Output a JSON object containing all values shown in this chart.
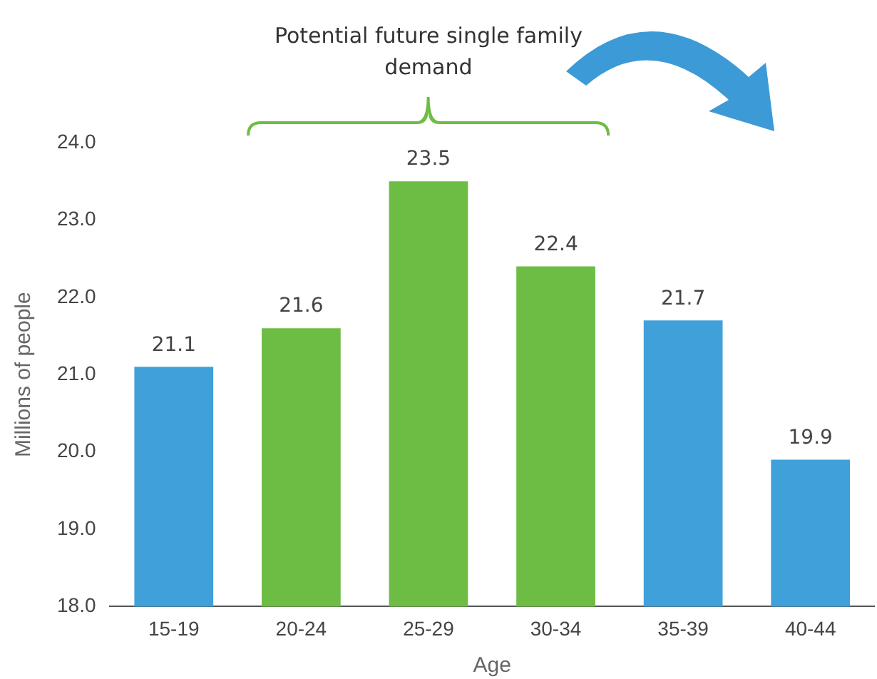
{
  "chart_data": {
    "type": "bar",
    "annotations": [
      "Potential future single family demand"
    ],
    "categories": [
      "15-19",
      "20-24",
      "25-29",
      "30-34",
      "35-39",
      "40-44"
    ],
    "values": [
      21.1,
      21.6,
      23.5,
      22.4,
      21.7,
      19.9
    ],
    "colors": [
      "#40a0da",
      "#6dbd45",
      "#6dbd45",
      "#6dbd45",
      "#40a0da",
      "#40a0da"
    ],
    "xlabel": "Age",
    "ylabel": "Millions of people",
    "ylim": [
      18,
      24
    ],
    "yticks": [
      {
        "value": 18,
        "label": "18.0"
      },
      {
        "value": 19,
        "label": "19.0"
      },
      {
        "value": 20,
        "label": "20.0"
      },
      {
        "value": 21,
        "label": "21.0"
      },
      {
        "value": 22,
        "label": "22.0"
      },
      {
        "value": 23,
        "label": "23.0"
      },
      {
        "value": 24,
        "label": "24.0"
      }
    ],
    "data_labels": true,
    "grid": false,
    "legend": false
  }
}
